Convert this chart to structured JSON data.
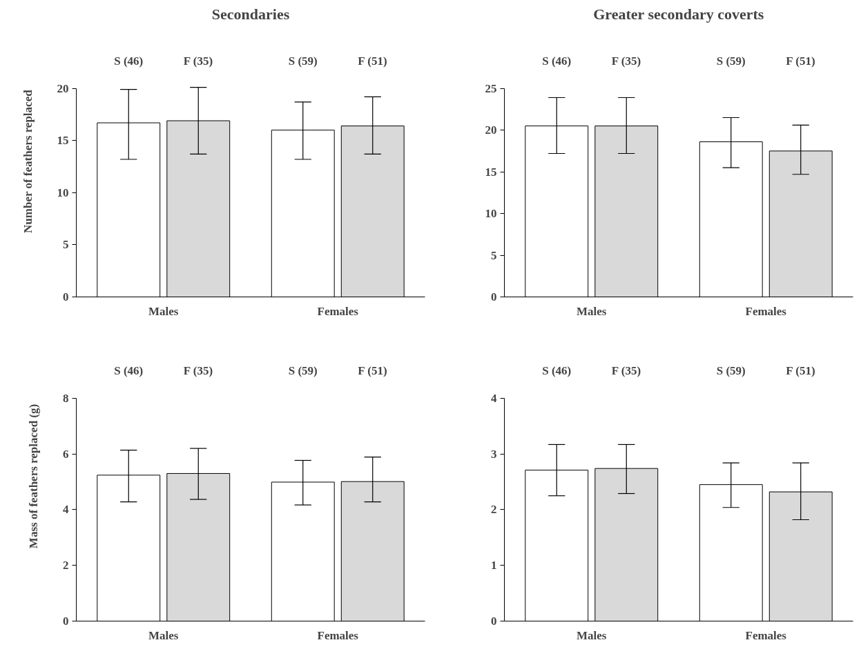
{
  "chart_data": [
    {
      "type": "bar",
      "title": "Secondaries",
      "ylabel": "Number of feathers replaced",
      "categories": [
        "Males",
        "Females"
      ],
      "series": [
        {
          "color": "#ffffff",
          "values": [
            16.7,
            16.0
          ],
          "errors": [
            [
              13.2,
              19.9
            ],
            [
              13.2,
              18.7
            ]
          ]
        },
        {
          "color": "#d9d9d9",
          "values": [
            16.9,
            16.4
          ],
          "errors": [
            [
              13.7,
              20.1
            ],
            [
              13.7,
              19.2
            ]
          ]
        }
      ],
      "ylim": [
        0,
        20
      ],
      "yticks": [
        0,
        5,
        10,
        15,
        20
      ],
      "annotations": [
        "S (46)",
        "F (35)",
        "S (59)",
        "F (51)"
      ]
    },
    {
      "type": "bar",
      "title": "Greater secondary coverts",
      "categories": [
        "Males",
        "Females"
      ],
      "series": [
        {
          "color": "#ffffff",
          "values": [
            20.5,
            18.6
          ],
          "errors": [
            [
              17.2,
              23.9
            ],
            [
              15.5,
              21.5
            ]
          ]
        },
        {
          "color": "#d9d9d9",
          "values": [
            20.5,
            17.5
          ],
          "errors": [
            [
              17.2,
              23.9
            ],
            [
              14.7,
              20.6
            ]
          ]
        }
      ],
      "ylim": [
        0,
        25
      ],
      "yticks": [
        0,
        5,
        10,
        15,
        20,
        25
      ],
      "annotations": [
        "S (46)",
        "F (35)",
        "S (59)",
        "F (51)"
      ]
    },
    {
      "type": "bar",
      "ylabel": "Mass of feathers replaced (g)",
      "categories": [
        "Males",
        "Females"
      ],
      "series": [
        {
          "color": "#ffffff",
          "values": [
            5.24,
            4.99
          ],
          "errors": [
            [
              4.28,
              6.14
            ],
            [
              4.17,
              5.77
            ]
          ]
        },
        {
          "color": "#d9d9d9",
          "values": [
            5.3,
            5.01
          ],
          "errors": [
            [
              4.37,
              6.2
            ],
            [
              4.28,
              5.89
            ]
          ]
        }
      ],
      "ylim": [
        0,
        8
      ],
      "yticks": [
        0,
        2,
        4,
        6,
        8
      ],
      "annotations": [
        "S (46)",
        "F (35)",
        "S (59)",
        "F (51)"
      ]
    },
    {
      "type": "bar",
      "categories": [
        "Males",
        "Females"
      ],
      "series": [
        {
          "color": "#ffffff",
          "values": [
            2.71,
            2.45
          ],
          "errors": [
            [
              2.25,
              3.17
            ],
            [
              2.04,
              2.84
            ]
          ]
        },
        {
          "color": "#d9d9d9",
          "values": [
            2.74,
            2.32
          ],
          "errors": [
            [
              2.29,
              3.17
            ],
            [
              1.82,
              2.84
            ]
          ]
        }
      ],
      "ylim": [
        0,
        4
      ],
      "yticks": [
        0,
        1,
        2,
        3,
        4
      ],
      "annotations": [
        "S (46)",
        "F (35)",
        "S (59)",
        "F (51)"
      ]
    }
  ]
}
